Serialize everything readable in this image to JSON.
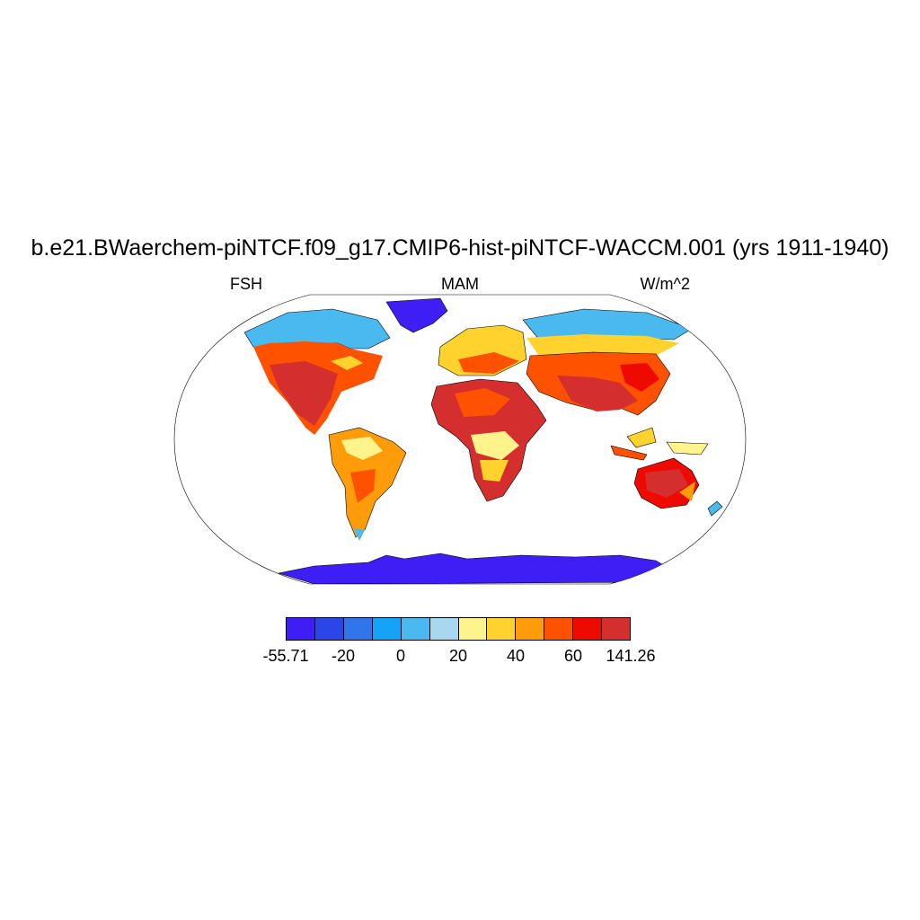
{
  "title": "b.e21.BWaerchem-piNTCF.f09_g17.CMIP6-hist-piNTCF-WACCM.001 (yrs 1911-1940)",
  "variable": "FSH",
  "season": "MAM",
  "units": "W/m^2",
  "legend": {
    "colors": [
      "#3f1df5",
      "#2a46e6",
      "#3275ea",
      "#14a3f7",
      "#49b9ef",
      "#a8d8ef",
      "#fff48c",
      "#ffd22d",
      "#ff9c0a",
      "#ff5200",
      "#ee0a00",
      "#d42e2e"
    ],
    "tick_labels": [
      "-55.71",
      "-20",
      "0",
      "20",
      "40",
      "60",
      "141.26"
    ],
    "tick_boundary_index": [
      0,
      2,
      4,
      6,
      8,
      10,
      12
    ]
  }
}
